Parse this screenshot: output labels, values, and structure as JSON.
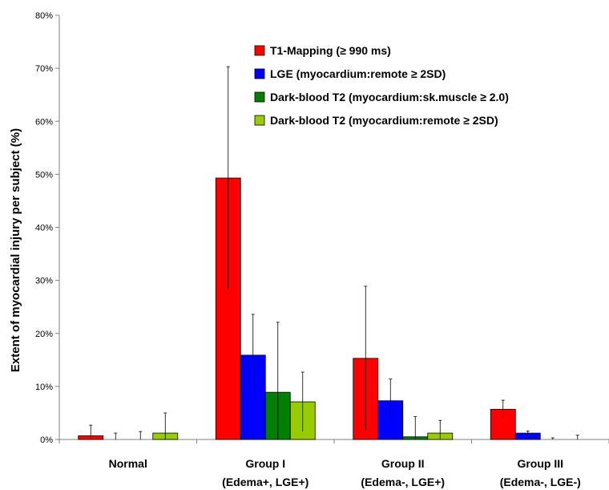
{
  "chart_data": {
    "type": "bar",
    "title": "",
    "xlabel": "",
    "ylabel": "Extent of myocardial injury per subject (%)",
    "ylim": [
      0,
      80
    ],
    "yticks": [
      0,
      10,
      20,
      30,
      40,
      50,
      60,
      70,
      80
    ],
    "ytick_labels": [
      "0%",
      "10%",
      "20%",
      "30%",
      "40%",
      "50%",
      "60%",
      "70%",
      "80%"
    ],
    "categories": [
      {
        "line1": "Normal",
        "line2": ""
      },
      {
        "line1": "Group I",
        "line2": "(Edema+, LGE+)"
      },
      {
        "line1": "Group II",
        "line2": "(Edema-, LGE+)"
      },
      {
        "line1": "Group III",
        "line2": "(Edema-, LGE-)"
      }
    ],
    "series": [
      {
        "name": "T1-Mapping (≥ 990 ms)",
        "color": "#ff0000",
        "values": [
          0.7,
          49.3,
          15.3,
          5.7
        ],
        "errors": [
          2.0,
          21.0,
          13.6,
          1.7
        ]
      },
      {
        "name": "LGE (myocardium:remote ≥ 2SD)",
        "color": "#0000ff",
        "values": [
          0,
          15.9,
          7.3,
          1.2
        ],
        "errors": [
          1.2,
          7.7,
          4.1,
          0.4
        ]
      },
      {
        "name": "Dark-blood T2 (myocardium:sk.muscle ≥ 2.0)",
        "color": "#008000",
        "values": [
          0,
          8.9,
          0.5,
          0
        ],
        "errors": [
          1.5,
          13.2,
          3.8,
          0.3
        ]
      },
      {
        "name": "Dark-blood T2 (myocardium:remote ≥ 2SD)",
        "color": "#99cc00",
        "values": [
          1.2,
          7.1,
          1.2,
          0
        ],
        "errors": [
          3.8,
          5.6,
          2.4,
          0.8
        ]
      }
    ],
    "legend_position": "top-right",
    "grid": false
  }
}
